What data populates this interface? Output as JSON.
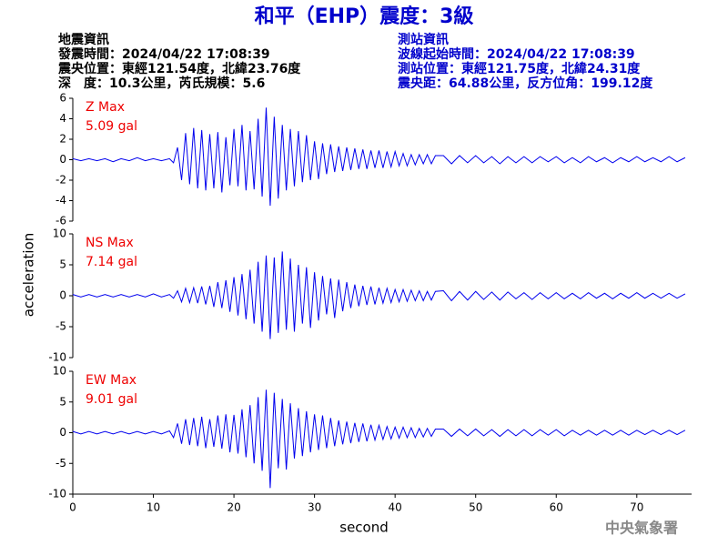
{
  "title": "和平（EHP）震度：3級",
  "header": {
    "left": [
      "地震資訊",
      "發震時間：2024/04/22 17:08:39",
      "震央位置：東經121.54度，北緯23.76度",
      "深　度：10.3公里，芮氏規模：5.6"
    ],
    "right": [
      "測站資訊",
      "波線起始時間：2024/04/22 17:08:39",
      "測站位置：東經121.75度，北緯24.31度",
      "震央距：64.88公里，反方位角：199.12度"
    ]
  },
  "ylabel": "acceleration",
  "footer": "中央氣象署",
  "chart_data": [
    {
      "type": "line",
      "annotation": "Z Max",
      "max_label": "5.09 gal",
      "xlim": [
        0,
        76.8
      ],
      "ylim": [
        -6,
        6
      ],
      "yticks": [
        6,
        4,
        2,
        0,
        -2,
        -4,
        -6
      ],
      "x": [
        0,
        1,
        2,
        3,
        4,
        5,
        6,
        7,
        8,
        9,
        10,
        11,
        12,
        12.5,
        13,
        13.5,
        14,
        14.5,
        15,
        15.5,
        16,
        16.5,
        17,
        17.5,
        18,
        18.5,
        19,
        19.5,
        20,
        20.5,
        21,
        21.5,
        22,
        22.5,
        23,
        23.5,
        24,
        24.5,
        25,
        25.5,
        26,
        26.5,
        27,
        27.5,
        28,
        28.5,
        29,
        29.5,
        30,
        30.5,
        31,
        31.5,
        32,
        32.5,
        33,
        33.5,
        34,
        34.5,
        35,
        35.5,
        36,
        36.5,
        37,
        37.5,
        38,
        38.5,
        39,
        39.5,
        40,
        40.5,
        41,
        41.5,
        42,
        42.5,
        43,
        43.5,
        44,
        44.5,
        45,
        46,
        47,
        48,
        49,
        50,
        51,
        52,
        53,
        54,
        55,
        56,
        57,
        58,
        59,
        60,
        61,
        62,
        63,
        64,
        65,
        66,
        67,
        68,
        69,
        70,
        71,
        72,
        73,
        74,
        75,
        76
      ],
      "series": [
        {
          "color": "#0000ee",
          "values": [
            0.1,
            -0.1,
            0.1,
            -0.1,
            0.1,
            -0.2,
            0.1,
            -0.1,
            0.2,
            -0.1,
            0.1,
            -0.1,
            0.1,
            -0.3,
            1.2,
            -2.0,
            2.6,
            -2.4,
            3.1,
            -2.8,
            2.9,
            -3.0,
            2.5,
            -2.8,
            2.7,
            -3.2,
            2.2,
            -2.5,
            3.0,
            -2.6,
            3.4,
            -3.0,
            2.8,
            -2.9,
            4.0,
            -3.6,
            5.09,
            -4.5,
            4.2,
            -3.8,
            3.4,
            -3.0,
            3.0,
            -2.6,
            2.8,
            -2.2,
            2.4,
            -2.0,
            1.8,
            -1.9,
            1.6,
            -1.4,
            1.5,
            -1.2,
            1.3,
            -1.1,
            1.2,
            -1.0,
            1.1,
            -0.9,
            1.0,
            -0.9,
            0.9,
            -0.8,
            0.9,
            -0.8,
            0.8,
            -0.7,
            0.8,
            -0.6,
            0.6,
            -0.6,
            0.5,
            -0.5,
            0.5,
            -0.4,
            0.5,
            -0.4,
            0.4,
            0.4,
            -0.4,
            0.4,
            -0.3,
            0.4,
            -0.3,
            0.3,
            -0.4,
            0.3,
            -0.3,
            0.3,
            -0.3,
            0.3,
            -0.2,
            0.3,
            -0.3,
            0.2,
            -0.3,
            0.3,
            -0.2,
            0.2,
            -0.3,
            0.2,
            -0.2,
            0.3,
            -0.2,
            0.2,
            -0.2,
            0.3,
            -0.2,
            0.2
          ]
        }
      ]
    },
    {
      "type": "line",
      "annotation": "NS Max",
      "max_label": "7.14 gal",
      "xlim": [
        0,
        76.8
      ],
      "ylim": [
        -10,
        10
      ],
      "yticks": [
        10,
        5,
        0,
        -5,
        -10
      ],
      "x": [
        0,
        1,
        2,
        3,
        4,
        5,
        6,
        7,
        8,
        9,
        10,
        11,
        12,
        12.5,
        13,
        13.5,
        14,
        14.5,
        15,
        15.5,
        16,
        16.5,
        17,
        17.5,
        18,
        18.5,
        19,
        19.5,
        20,
        20.5,
        21,
        21.5,
        22,
        22.5,
        23,
        23.5,
        24,
        24.5,
        25,
        25.5,
        26,
        26.5,
        27,
        27.5,
        28,
        28.5,
        29,
        29.5,
        30,
        30.5,
        31,
        31.5,
        32,
        32.5,
        33,
        33.5,
        34,
        34.5,
        35,
        35.5,
        36,
        36.5,
        37,
        37.5,
        38,
        38.5,
        39,
        39.5,
        40,
        40.5,
        41,
        41.5,
        42,
        42.5,
        43,
        43.5,
        44,
        44.5,
        45,
        46,
        47,
        48,
        49,
        50,
        51,
        52,
        53,
        54,
        55,
        56,
        57,
        58,
        59,
        60,
        61,
        62,
        63,
        64,
        65,
        66,
        67,
        68,
        69,
        70,
        71,
        72,
        73,
        74,
        75,
        76
      ],
      "series": [
        {
          "color": "#0000ee",
          "values": [
            0.2,
            -0.2,
            0.2,
            -0.2,
            0.2,
            -0.2,
            0.2,
            -0.2,
            0.2,
            -0.2,
            0.3,
            -0.2,
            0.2,
            -0.4,
            0.8,
            -1.0,
            1.2,
            -1.1,
            1.3,
            -1.2,
            1.5,
            -1.4,
            1.6,
            -1.8,
            2.2,
            -2.0,
            2.5,
            -2.6,
            3.0,
            -3.2,
            3.5,
            -3.8,
            4.2,
            -4.5,
            5.5,
            -5.8,
            6.5,
            -7.0,
            6.2,
            -6.0,
            7.14,
            -5.5,
            6.0,
            -5.8,
            5.0,
            -4.5,
            4.6,
            -5.2,
            3.8,
            -4.0,
            3.2,
            -3.0,
            2.8,
            -3.6,
            2.6,
            -2.5,
            2.2,
            -2.0,
            1.8,
            -1.7,
            1.6,
            -1.5,
            1.5,
            -1.4,
            1.3,
            -1.2,
            1.2,
            -1.1,
            1.0,
            -1.0,
            1.0,
            -0.9,
            0.9,
            -0.8,
            0.8,
            -0.8,
            0.7,
            -0.7,
            0.7,
            0.8,
            -0.8,
            0.7,
            -0.7,
            0.7,
            -0.6,
            0.6,
            -0.7,
            0.6,
            -0.5,
            0.5,
            -0.6,
            0.5,
            -0.5,
            0.5,
            -0.5,
            0.4,
            -0.5,
            0.5,
            -0.4,
            0.4,
            -0.5,
            0.4,
            -0.4,
            0.5,
            -0.4,
            0.4,
            -0.4,
            0.4,
            -0.4,
            0.3
          ]
        }
      ]
    },
    {
      "type": "line",
      "annotation": "EW Max",
      "max_label": "9.01 gal",
      "xlabel": "second",
      "xlim": [
        0,
        76.8
      ],
      "xticks": [
        0,
        10,
        20,
        30,
        40,
        50,
        60,
        70
      ],
      "ylim": [
        -10,
        10
      ],
      "yticks": [
        10,
        5,
        0,
        -5,
        -10
      ],
      "x": [
        0,
        1,
        2,
        3,
        4,
        5,
        6,
        7,
        8,
        9,
        10,
        11,
        12,
        12.5,
        13,
        13.5,
        14,
        14.5,
        15,
        15.5,
        16,
        16.5,
        17,
        17.5,
        18,
        18.5,
        19,
        19.5,
        20,
        20.5,
        21,
        21.5,
        22,
        22.5,
        23,
        23.5,
        24,
        24.5,
        25,
        25.5,
        26,
        26.5,
        27,
        27.5,
        28,
        28.5,
        29,
        29.5,
        30,
        30.5,
        31,
        31.5,
        32,
        32.5,
        33,
        33.5,
        34,
        34.5,
        35,
        35.5,
        36,
        36.5,
        37,
        37.5,
        38,
        38.5,
        39,
        39.5,
        40,
        40.5,
        41,
        41.5,
        42,
        42.5,
        43,
        43.5,
        44,
        44.5,
        45,
        46,
        47,
        48,
        49,
        50,
        51,
        52,
        53,
        54,
        55,
        56,
        57,
        58,
        59,
        60,
        61,
        62,
        63,
        64,
        65,
        66,
        67,
        68,
        69,
        70,
        71,
        72,
        73,
        74,
        75,
        76
      ],
      "series": [
        {
          "color": "#0000ee",
          "values": [
            0.2,
            -0.2,
            0.2,
            -0.2,
            0.2,
            -0.2,
            0.2,
            -0.2,
            0.2,
            -0.2,
            0.2,
            -0.2,
            0.3,
            -0.8,
            1.5,
            -1.8,
            2.2,
            -2.0,
            2.4,
            -2.2,
            2.6,
            -2.5,
            2.2,
            -2.3,
            2.8,
            -2.6,
            3.0,
            -3.2,
            2.9,
            -3.4,
            3.8,
            -4.0,
            4.5,
            -5.0,
            5.8,
            -6.2,
            7.0,
            -9.01,
            6.5,
            -5.8,
            5.5,
            -6.0,
            4.8,
            -4.2,
            4.0,
            -3.8,
            3.5,
            -3.2,
            3.0,
            -2.8,
            2.8,
            -2.5,
            2.4,
            -2.2,
            2.0,
            -1.9,
            1.8,
            -1.7,
            1.6,
            -1.5,
            1.5,
            -1.4,
            1.3,
            -1.2,
            1.2,
            -1.1,
            1.0,
            -1.0,
            0.9,
            -0.9,
            0.9,
            -0.8,
            0.8,
            -0.8,
            0.7,
            -0.7,
            0.7,
            -0.6,
            0.6,
            0.6,
            -0.6,
            0.6,
            -0.5,
            0.6,
            -0.5,
            0.5,
            -0.6,
            0.5,
            -0.5,
            0.5,
            -0.5,
            0.5,
            -0.4,
            0.5,
            -0.5,
            0.4,
            -0.4,
            0.4,
            -0.4,
            0.4,
            -0.4,
            0.4,
            -0.4,
            0.4,
            -0.3,
            0.4,
            -0.3,
            0.4,
            -0.3,
            0.4
          ]
        }
      ]
    }
  ]
}
